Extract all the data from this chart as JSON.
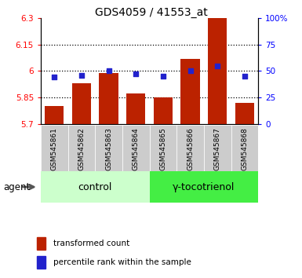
{
  "title": "GDS4059 / 41553_at",
  "samples": [
    "GSM545861",
    "GSM545862",
    "GSM545863",
    "GSM545864",
    "GSM545865",
    "GSM545866",
    "GSM545867",
    "GSM545868"
  ],
  "bar_values": [
    5.8,
    5.93,
    5.99,
    5.87,
    5.85,
    6.07,
    6.3,
    5.82
  ],
  "percentile_values": [
    44,
    46,
    50,
    47,
    45,
    50,
    55,
    45
  ],
  "bar_color": "#bb2200",
  "dot_color": "#2222cc",
  "ylim_left": [
    5.7,
    6.3
  ],
  "ylim_right": [
    0,
    100
  ],
  "yticks_left": [
    5.7,
    5.85,
    6.0,
    6.15,
    6.3
  ],
  "yticks_right": [
    0,
    25,
    50,
    75,
    100
  ],
  "ytick_labels_left": [
    "5.7",
    "5.85",
    "6",
    "6.15",
    "6.3"
  ],
  "ytick_labels_right": [
    "0",
    "25",
    "50",
    "75",
    "100%"
  ],
  "hlines": [
    5.85,
    6.0,
    6.15
  ],
  "n_control": 4,
  "n_treatment": 4,
  "control_label": "control",
  "treatment_label": "γ-tocotrienol",
  "agent_label": "agent",
  "legend_bar_label": "transformed count",
  "legend_dot_label": "percentile rank within the sample",
  "control_bg": "#ccffcc",
  "treatment_bg": "#44ee44",
  "sample_bg": "#cccccc",
  "bar_bottom": 5.7,
  "bar_width": 0.7
}
